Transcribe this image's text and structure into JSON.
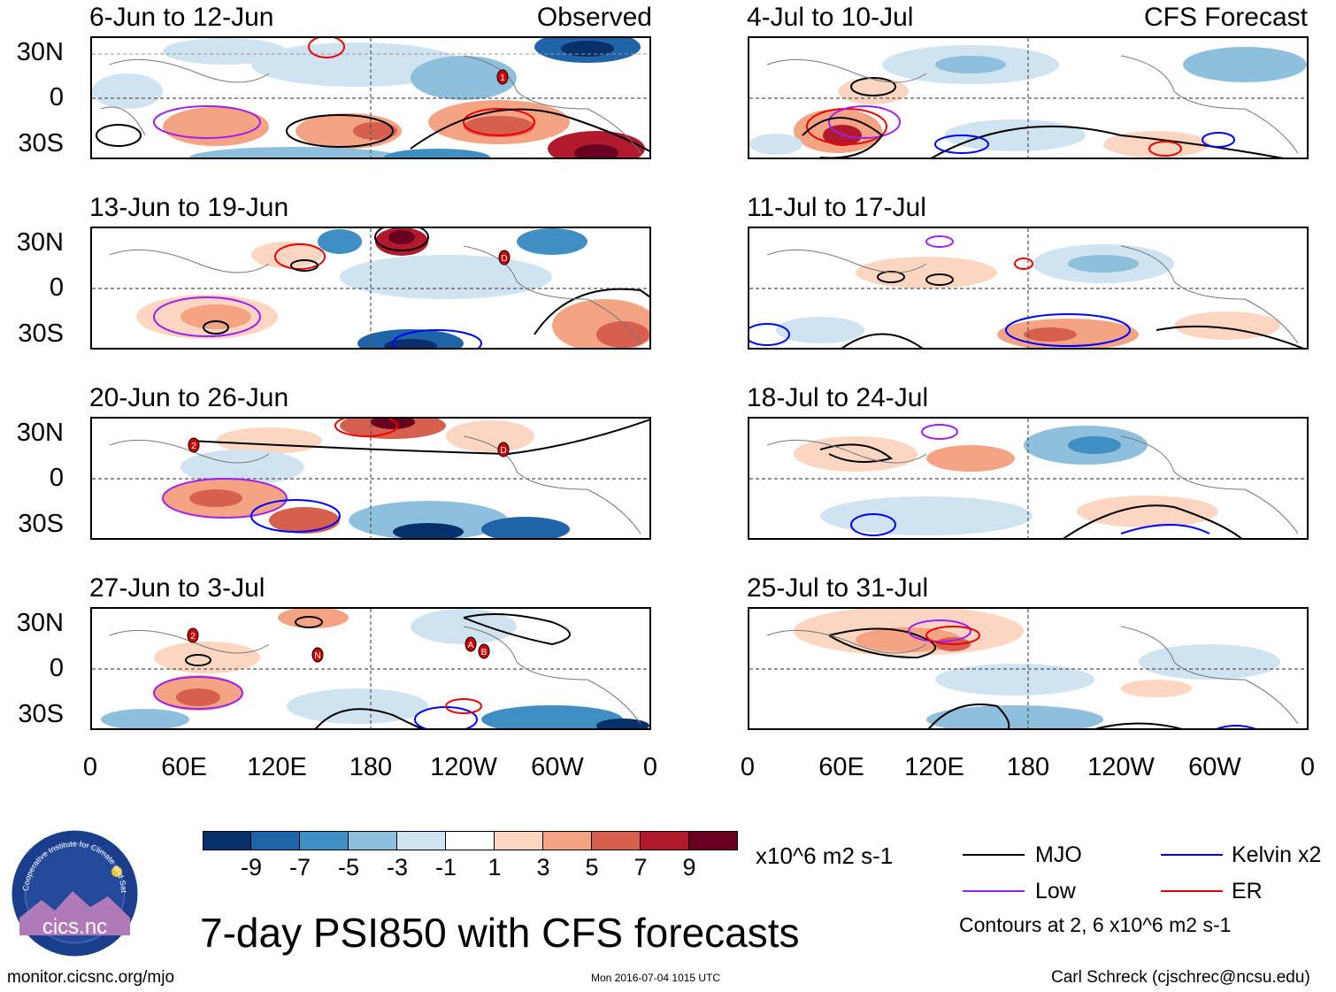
{
  "panels": [
    {
      "title": "6-Jun to 12-Jun",
      "tag": "Observed"
    },
    {
      "title": "13-Jun to 19-Jun",
      "tag": ""
    },
    {
      "title": "20-Jun to 26-Jun",
      "tag": ""
    },
    {
      "title": "27-Jun to 3-Jul",
      "tag": ""
    },
    {
      "title": "4-Jul to 10-Jul",
      "tag": "CFS Forecast"
    },
    {
      "title": "11-Jul to 17-Jul",
      "tag": ""
    },
    {
      "title": "18-Jul to 24-Jul",
      "tag": ""
    },
    {
      "title": "25-Jul to 31-Jul",
      "tag": ""
    }
  ],
  "lat_labels": [
    "30N",
    "0",
    "30S"
  ],
  "lon_labels": [
    "0",
    "60E",
    "120E",
    "180",
    "120W",
    "60W",
    "0"
  ],
  "storm_markers": [
    {
      "panel": 0,
      "label": "1"
    },
    {
      "panel": 1,
      "label": "D"
    },
    {
      "panel": 2,
      "label": "2"
    },
    {
      "panel": 2,
      "label": "D"
    },
    {
      "panel": 3,
      "label": "2"
    },
    {
      "panel": 3,
      "label": "N"
    },
    {
      "panel": 3,
      "label": "A"
    },
    {
      "panel": 3,
      "label": "B"
    }
  ],
  "colorbar": {
    "colors": [
      "#08306b",
      "#1f63a8",
      "#3f8ec4",
      "#8ec0de",
      "#d0e3f1",
      "#ffffff",
      "#fdd6c2",
      "#f4a483",
      "#d65f4d",
      "#b01a2c",
      "#67001f"
    ],
    "tick_labels": [
      "-9",
      "-7",
      "-5",
      "-3",
      "-1",
      "1",
      "3",
      "5",
      "7",
      "9"
    ],
    "units": "x10^6 m2 s-1"
  },
  "legend": {
    "items": [
      {
        "label": "MJO",
        "color": "#000000"
      },
      {
        "label": "Kelvin x2",
        "color": "#0000ff"
      },
      {
        "label": "Low",
        "color": "#a020f0"
      },
      {
        "label": "ER",
        "color": "#ee0000"
      }
    ],
    "note": "Contours at 2, 6 x10^6 m2 s-1"
  },
  "logo_text": "cics.nc",
  "logo_ring_text": "Cooperative Institute for Climate and Satellites",
  "main_title": "7-day PSI850 with CFS forecasts",
  "footer": {
    "left": "monitor.cicsnc.org/mjo",
    "center": "Mon 2016-07-04 1015 UTC",
    "right": "Carl Schreck (cjschrec@ncsu.edu)"
  }
}
